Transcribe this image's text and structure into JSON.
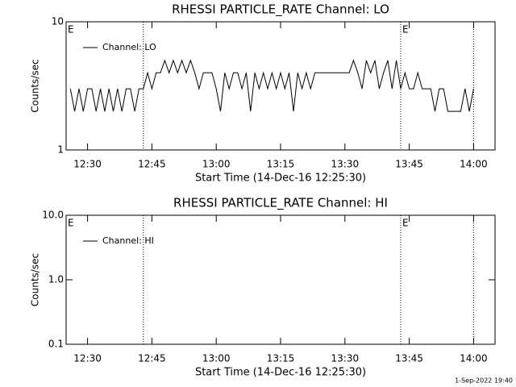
{
  "chart_data": [
    {
      "type": "line",
      "title": "RHESSI PARTICLE_RATE Channel: LO",
      "ylabel": "Counts/sec",
      "xlabel": "Start Time (14-Dec-16 12:25:30)",
      "log_y": true,
      "ylim": [
        1,
        10
      ],
      "yticks": [
        1,
        10
      ],
      "xlim": [
        "12:25",
        "14:05"
      ],
      "xticks": [
        "12:30",
        "12:45",
        "13:00",
        "13:15",
        "13:30",
        "13:45",
        "14:00"
      ],
      "markers": [
        "12:43",
        "13:43",
        "14:00"
      ],
      "annotations": [
        {
          "text": "E",
          "x": "12:25"
        },
        {
          "text": "E",
          "x": "13:43"
        }
      ],
      "legend": "upper left",
      "x": [
        "12:26",
        "12:27",
        "12:28",
        "12:29",
        "12:30",
        "12:31",
        "12:32",
        "12:33",
        "12:34",
        "12:35",
        "12:36",
        "12:37",
        "12:38",
        "12:39",
        "12:40",
        "12:41",
        "12:42",
        "12:43",
        "12:44",
        "12:45",
        "12:46",
        "12:47",
        "12:48",
        "12:49",
        "12:50",
        "12:51",
        "12:52",
        "12:53",
        "12:54",
        "12:55",
        "12:56",
        "12:57",
        "12:58",
        "12:59",
        "13:00",
        "13:01",
        "13:02",
        "13:03",
        "13:04",
        "13:05",
        "13:06",
        "13:07",
        "13:08",
        "13:09",
        "13:10",
        "13:11",
        "13:12",
        "13:13",
        "13:14",
        "13:15",
        "13:16",
        "13:17",
        "13:18",
        "13:19",
        "13:20",
        "13:21",
        "13:22",
        "13:23",
        "13:24",
        "13:25",
        "13:26",
        "13:27",
        "13:28",
        "13:29",
        "13:30",
        "13:31",
        "13:32",
        "13:33",
        "13:34",
        "13:35",
        "13:36",
        "13:37",
        "13:38",
        "13:39",
        "13:40",
        "13:41",
        "13:42",
        "13:43",
        "13:44",
        "13:45",
        "13:46",
        "13:47",
        "13:48",
        "13:49",
        "13:50",
        "13:51",
        "13:52",
        "13:53",
        "13:54",
        "13:55",
        "13:56",
        "13:57",
        "13:58",
        "13:59",
        "14:00"
      ],
      "series": [
        {
          "name": "Channel: LO",
          "color": "#000000",
          "values": [
            3,
            2,
            3,
            2,
            3,
            3,
            2,
            3,
            2,
            3,
            2,
            3,
            2,
            3,
            3,
            2,
            3,
            3,
            4,
            3,
            4,
            4,
            5,
            4,
            5,
            4,
            5,
            4,
            5,
            4,
            3,
            4,
            4,
            4,
            3,
            2,
            4,
            3,
            4,
            4,
            3,
            4,
            2,
            4,
            3,
            4,
            3,
            4,
            3,
            4,
            3,
            4,
            2,
            4,
            3,
            4,
            3,
            4,
            4,
            4,
            4,
            4,
            4,
            4,
            4,
            4,
            5,
            4,
            3,
            5,
            4,
            5,
            3,
            4,
            5,
            3,
            5,
            3,
            4,
            3,
            3,
            4,
            3,
            3,
            3,
            2,
            3,
            3,
            2,
            2,
            2,
            2,
            3,
            2,
            3
          ]
        }
      ]
    },
    {
      "type": "line",
      "title": "RHESSI PARTICLE_RATE Channel: HI",
      "ylabel": "Counts/sec",
      "xlabel": "Start Time (14-Dec-16 12:25:30)",
      "log_y": true,
      "ylim": [
        0.1,
        10
      ],
      "yticks": [
        0.1,
        {
          "value": 1,
          "label": "1.0"
        },
        {
          "value": 10,
          "label": "10.0"
        }
      ],
      "xlim": [
        "12:25",
        "14:05"
      ],
      "xticks": [
        "12:30",
        "12:45",
        "13:00",
        "13:15",
        "13:30",
        "13:45",
        "14:00"
      ],
      "markers": [
        "12:43",
        "13:43",
        "14:00"
      ],
      "annotations": [
        {
          "text": "E",
          "x": "12:25"
        },
        {
          "text": "E",
          "x": "13:43"
        }
      ],
      "legend": "upper left",
      "x": [],
      "series": [
        {
          "name": "Channel: HI",
          "color": "#000000",
          "values": []
        }
      ]
    }
  ],
  "footer": "1-Sep-2022 19:40"
}
